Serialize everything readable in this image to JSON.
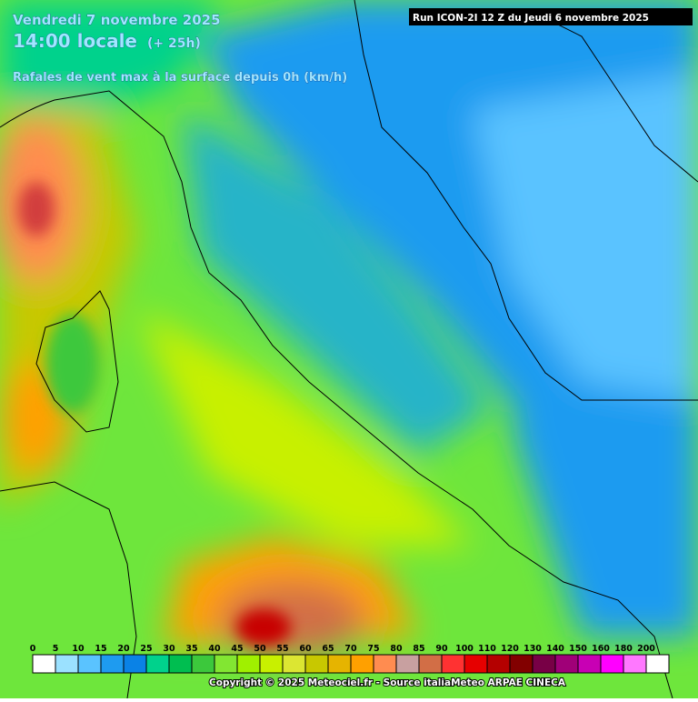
{
  "header": {
    "date": "Vendredi 7 novembre 2025",
    "time": "14:00 locale",
    "lead": "(+ 25h)",
    "parameter": "Rafales de vent max à la surface depuis 0h (km/h)",
    "run": "Run ICON-2I 12 Z du Jeudi 6 novembre 2025"
  },
  "legend": {
    "labels": [
      0,
      5,
      10,
      15,
      20,
      25,
      30,
      35,
      40,
      45,
      50,
      55,
      60,
      65,
      70,
      75,
      80,
      85,
      90,
      100,
      110,
      120,
      130,
      140,
      150,
      160,
      180,
      200
    ],
    "colors": [
      "#ffffff",
      "#9be1ff",
      "#5ac3ff",
      "#1e9bf0",
      "#0a82e6",
      "#00d28c",
      "#00be50",
      "#3cc83c",
      "#82e632",
      "#a0f000",
      "#c8f000",
      "#dce632",
      "#c8c800",
      "#e6b400",
      "#ffa000",
      "#ff8c50",
      "#c8a0a0",
      "#d26e46",
      "#ff3232",
      "#e60000",
      "#b40000",
      "#820000",
      "#780046",
      "#a00078",
      "#c800b4",
      "#ff00ff",
      "#ff78ff",
      "#ffffff"
    ]
  },
  "footer": {
    "copyright": "Copyright © 2025 Meteociel.fr - Source italiaMeteo ARPAE CINECA"
  }
}
